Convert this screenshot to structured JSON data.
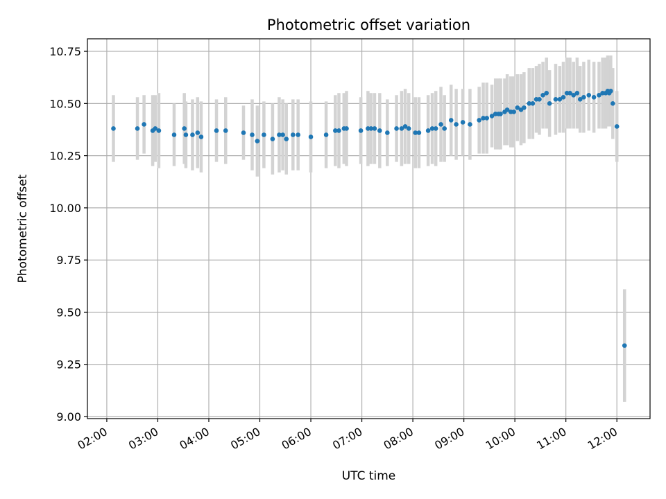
{
  "chart_data": {
    "type": "scatter",
    "title": "Photometric offset variation",
    "xlabel": "UTC time",
    "ylabel": "Photometric offset",
    "x_unit": "UTC hours",
    "xlim": [
      1.62,
      12.65
    ],
    "ylim": [
      8.99,
      10.81
    ],
    "grid": true,
    "x_ticks": [
      2,
      3,
      4,
      5,
      6,
      7,
      8,
      9,
      10,
      11,
      12
    ],
    "x_tick_labels": [
      "02:00",
      "03:00",
      "04:00",
      "05:00",
      "06:00",
      "07:00",
      "08:00",
      "09:00",
      "10:00",
      "11:00",
      "12:00"
    ],
    "y_ticks": [
      9.0,
      9.25,
      9.5,
      9.75,
      10.0,
      10.25,
      10.5,
      10.75
    ],
    "y_tick_labels": [
      "9.00",
      "9.25",
      "9.50",
      "9.75",
      "10.00",
      "10.25",
      "10.50",
      "10.75"
    ],
    "colors": {
      "point": "#1f77b4",
      "errorbar": "#d3d3d3",
      "grid": "#b0b0b0"
    },
    "series": [
      {
        "marker": "point",
        "errorbars": "vertical",
        "x": [
          2.13,
          2.6,
          2.73,
          2.9,
          2.95,
          3.02,
          3.32,
          3.52,
          3.55,
          3.68,
          3.78,
          3.85,
          4.15,
          4.33,
          4.68,
          4.85,
          4.95,
          5.08,
          5.25,
          5.38,
          5.45,
          5.52,
          5.65,
          5.75,
          6.0,
          6.3,
          6.48,
          6.55,
          6.65,
          6.7,
          6.98,
          7.12,
          7.18,
          7.25,
          7.35,
          7.5,
          7.68,
          7.78,
          7.85,
          7.92,
          8.05,
          8.12,
          8.3,
          8.38,
          8.45,
          8.55,
          8.62,
          8.75,
          8.85,
          8.98,
          9.12,
          9.3,
          9.38,
          9.45,
          9.55,
          9.62,
          9.68,
          9.72,
          9.8,
          9.85,
          9.92,
          9.98,
          10.05,
          10.12,
          10.18,
          10.28,
          10.35,
          10.42,
          10.48,
          10.55,
          10.62,
          10.68,
          10.8,
          10.88,
          10.95,
          11.02,
          11.08,
          11.15,
          11.22,
          11.28,
          11.35,
          11.45,
          11.55,
          11.65,
          11.72,
          11.78,
          11.82,
          11.85,
          11.88,
          11.92,
          12.0,
          12.15
        ],
        "y": [
          10.38,
          10.38,
          10.4,
          10.37,
          10.38,
          10.37,
          10.35,
          10.38,
          10.35,
          10.35,
          10.36,
          10.34,
          10.37,
          10.37,
          10.36,
          10.35,
          10.32,
          10.35,
          10.33,
          10.35,
          10.35,
          10.33,
          10.35,
          10.35,
          10.34,
          10.35,
          10.37,
          10.37,
          10.38,
          10.38,
          10.37,
          10.38,
          10.38,
          10.38,
          10.37,
          10.36,
          10.38,
          10.38,
          10.39,
          10.38,
          10.36,
          10.36,
          10.37,
          10.38,
          10.38,
          10.4,
          10.38,
          10.42,
          10.4,
          10.41,
          10.4,
          10.42,
          10.43,
          10.43,
          10.44,
          10.45,
          10.45,
          10.45,
          10.46,
          10.47,
          10.46,
          10.46,
          10.48,
          10.47,
          10.48,
          10.5,
          10.5,
          10.52,
          10.52,
          10.54,
          10.55,
          10.5,
          10.52,
          10.52,
          10.53,
          10.55,
          10.55,
          10.54,
          10.55,
          10.52,
          10.53,
          10.54,
          10.53,
          10.54,
          10.55,
          10.55,
          10.56,
          10.55,
          10.56,
          10.5,
          10.39,
          9.34
        ],
        "yerr": [
          0.16,
          0.15,
          0.14,
          0.17,
          0.16,
          0.18,
          0.15,
          0.17,
          0.16,
          0.17,
          0.17,
          0.17,
          0.15,
          0.16,
          0.13,
          0.17,
          0.17,
          0.16,
          0.17,
          0.18,
          0.17,
          0.17,
          0.17,
          0.17,
          0.17,
          0.16,
          0.17,
          0.18,
          0.17,
          0.18,
          0.16,
          0.18,
          0.17,
          0.17,
          0.18,
          0.16,
          0.16,
          0.18,
          0.18,
          0.17,
          0.17,
          0.17,
          0.17,
          0.17,
          0.18,
          0.18,
          0.16,
          0.17,
          0.17,
          0.16,
          0.17,
          0.16,
          0.17,
          0.17,
          0.15,
          0.17,
          0.17,
          0.17,
          0.16,
          0.17,
          0.17,
          0.17,
          0.16,
          0.17,
          0.17,
          0.17,
          0.17,
          0.16,
          0.17,
          0.16,
          0.17,
          0.16,
          0.17,
          0.16,
          0.17,
          0.17,
          0.17,
          0.16,
          0.17,
          0.16,
          0.17,
          0.17,
          0.17,
          0.16,
          0.17,
          0.17,
          0.17,
          0.16,
          0.17,
          0.17,
          0.17,
          0.27
        ]
      }
    ]
  }
}
